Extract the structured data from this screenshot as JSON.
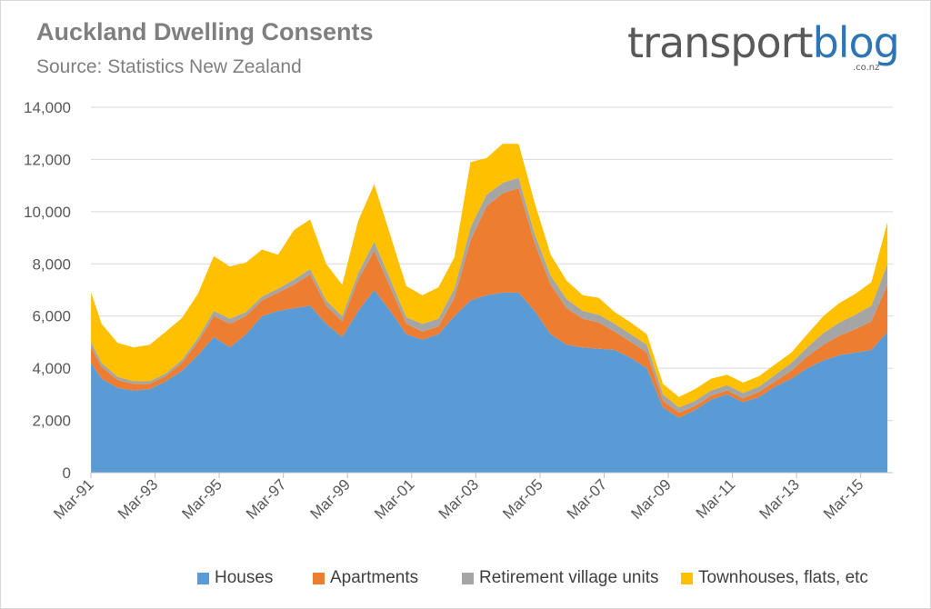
{
  "header": {
    "title": "Auckland Dwelling Consents",
    "subtitle": "Source: Statistics New Zealand"
  },
  "logo": {
    "part1": "transport",
    "part2": "blog",
    "suffix": ".co.nz",
    "colors": {
      "part1": "#595959",
      "part2": "#2e75b6"
    }
  },
  "legend": {
    "houses": "Houses",
    "apartments": "Apartments",
    "retirement": "Retirement village units",
    "townhouses": "Townhouses, flats, etc"
  },
  "chart_data": {
    "type": "area",
    "stacked": true,
    "title": "Auckland Dwelling Consents",
    "subtitle": "Source: Statistics New Zealand",
    "xlabel": "",
    "ylabel": "",
    "ylim": [
      0,
      14000
    ],
    "yticks": [
      0,
      2000,
      4000,
      6000,
      8000,
      10000,
      12000,
      14000
    ],
    "ytick_labels": [
      "0",
      "2,000",
      "4,000",
      "6,000",
      "8,000",
      "10,000",
      "12,000",
      "14,000"
    ],
    "xticks": [
      "Mar-91",
      "Mar-93",
      "Mar-95",
      "Mar-97",
      "Mar-99",
      "Mar-01",
      "Mar-03",
      "Mar-05",
      "Mar-07",
      "Mar-09",
      "Mar-11",
      "Mar-13",
      "Mar-15"
    ],
    "xrange": [
      "1991-03",
      "2016-03"
    ],
    "grid": "horizontal",
    "legend_position": "bottom",
    "x": [
      1991.17,
      1991.5,
      1992.0,
      1992.5,
      1993.0,
      1993.5,
      1994.0,
      1994.5,
      1995.0,
      1995.5,
      1996.0,
      1996.5,
      1997.0,
      1997.5,
      1998.0,
      1998.5,
      1999.0,
      1999.5,
      2000.0,
      2000.5,
      2001.0,
      2001.5,
      2002.0,
      2002.5,
      2003.0,
      2003.5,
      2004.0,
      2004.5,
      2005.0,
      2005.5,
      2006.0,
      2006.5,
      2007.0,
      2007.5,
      2008.0,
      2008.5,
      2009.0,
      2009.5,
      2010.0,
      2010.5,
      2011.0,
      2011.5,
      2012.0,
      2012.5,
      2013.0,
      2013.5,
      2014.0,
      2014.5,
      2015.0,
      2015.5,
      2016.0
    ],
    "series": [
      {
        "name": "Houses",
        "color": "#5b9bd5",
        "values": [
          4200,
          3600,
          3250,
          3150,
          3200,
          3500,
          3900,
          4500,
          5200,
          4800,
          5300,
          6000,
          6200,
          6300,
          6400,
          5700,
          5200,
          6200,
          7000,
          6200,
          5300,
          5100,
          5300,
          6000,
          6600,
          6800,
          6900,
          6900,
          6200,
          5300,
          4900,
          4800,
          4750,
          4700,
          4400,
          4000,
          2500,
          2100,
          2400,
          2800,
          3000,
          2700,
          2900,
          3300,
          3600,
          4000,
          4300,
          4500,
          4600,
          4700,
          5400
        ]
      },
      {
        "name": "Apartments",
        "color": "#ed7d31",
        "values": [
          600,
          450,
          300,
          250,
          200,
          200,
          300,
          500,
          800,
          900,
          700,
          600,
          700,
          900,
          1200,
          700,
          600,
          1200,
          1500,
          900,
          400,
          300,
          300,
          700,
          2300,
          3400,
          3800,
          4000,
          2600,
          1900,
          1400,
          1100,
          1000,
          700,
          600,
          600,
          250,
          200,
          150,
          150,
          150,
          150,
          200,
          200,
          300,
          450,
          600,
          750,
          900,
          1100,
          1800
        ]
      },
      {
        "name": "Retirement village units",
        "color": "#a5a5a5",
        "values": [
          200,
          150,
          120,
          100,
          100,
          100,
          120,
          150,
          200,
          200,
          150,
          150,
          150,
          200,
          200,
          200,
          200,
          250,
          350,
          300,
          250,
          300,
          300,
          350,
          500,
          450,
          400,
          400,
          350,
          350,
          350,
          300,
          300,
          300,
          300,
          300,
          250,
          200,
          200,
          200,
          200,
          200,
          200,
          250,
          300,
          350,
          450,
          500,
          550,
          600,
          800
        ]
      },
      {
        "name": "Townhouses, flats, etc",
        "color": "#ffc000",
        "values": [
          1900,
          1500,
          1300,
          1300,
          1400,
          1600,
          1600,
          1700,
          2100,
          2000,
          1900,
          1800,
          1300,
          1900,
          1900,
          1400,
          1200,
          2000,
          2200,
          1700,
          1200,
          1100,
          1200,
          1200,
          2500,
          1400,
          1500,
          1300,
          1200,
          800,
          700,
          600,
          650,
          450,
          450,
          400,
          400,
          400,
          450,
          450,
          400,
          400,
          400,
          400,
          400,
          500,
          650,
          750,
          800,
          900,
          1600
        ]
      }
    ]
  }
}
